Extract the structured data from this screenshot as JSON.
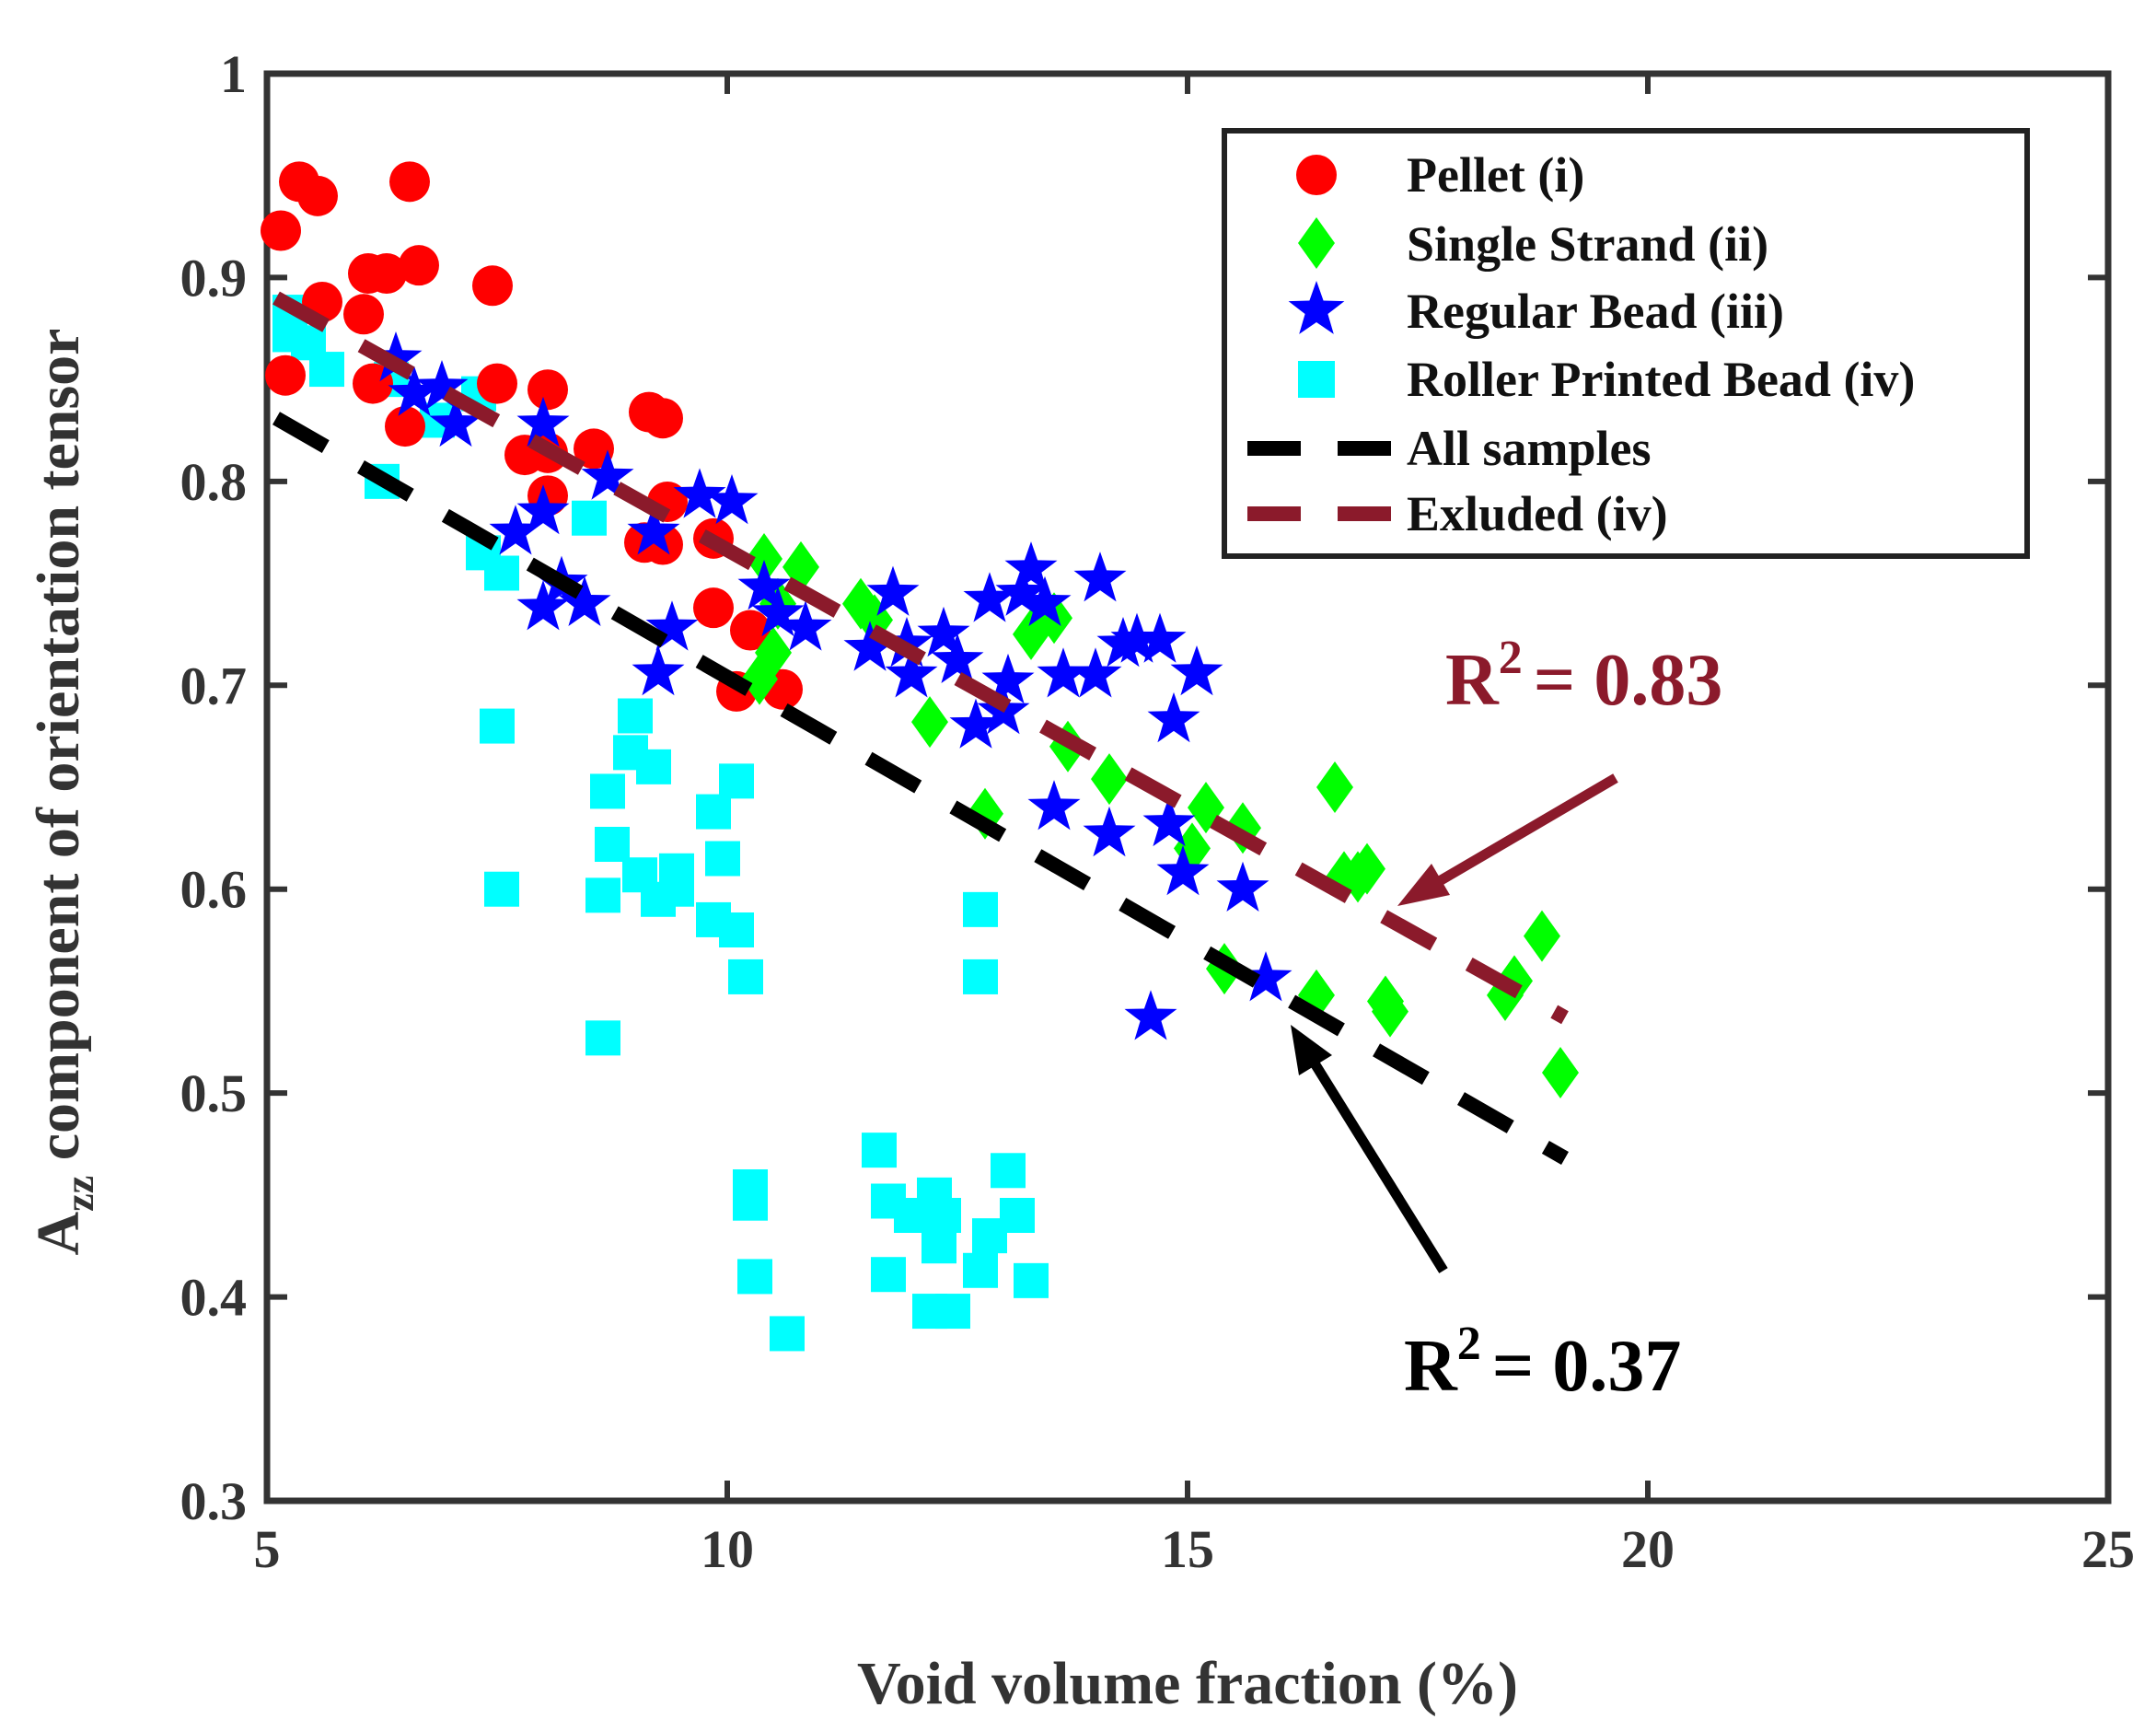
{
  "chart_data": {
    "type": "scatter",
    "xlabel": "Void volume fraction (%)",
    "ylabel_main": "A",
    "ylabel_sub": "zz",
    "ylabel_rest": " component of orientation tensor",
    "xlim": [
      5,
      25
    ],
    "ylim": [
      0.3,
      1
    ],
    "xticks": [
      5,
      10,
      15,
      20,
      25
    ],
    "yticks": [
      0.3,
      0.4,
      0.5,
      0.6,
      0.7,
      0.8,
      0.9,
      1
    ],
    "xtick_labels": [
      "5",
      "10",
      "15",
      "20",
      "25"
    ],
    "ytick_labels": [
      "0.3",
      "0.4",
      "0.5",
      "0.6",
      "0.7",
      "0.8",
      "0.9",
      "1"
    ],
    "grid": false,
    "legend_position": "top-right",
    "series": [
      {
        "name": "Pellet (i)",
        "marker": "circle",
        "color": "#ff0000",
        "points": [
          [
            5.15,
            0.923
          ],
          [
            5.35,
            0.947
          ],
          [
            5.55,
            0.94
          ],
          [
            5.2,
            0.852
          ],
          [
            5.6,
            0.888
          ],
          [
            6.05,
            0.882
          ],
          [
            6.1,
            0.902
          ],
          [
            6.3,
            0.902
          ],
          [
            6.15,
            0.848
          ],
          [
            6.5,
            0.827
          ],
          [
            6.55,
            0.947
          ],
          [
            6.65,
            0.906
          ],
          [
            7.45,
            0.896
          ],
          [
            7.5,
            0.848
          ],
          [
            7.8,
            0.813
          ],
          [
            8.05,
            0.845
          ],
          [
            8.05,
            0.814
          ],
          [
            8.05,
            0.793
          ],
          [
            8.55,
            0.816
          ],
          [
            9.15,
            0.834
          ],
          [
            9.3,
            0.831
          ],
          [
            9.1,
            0.77
          ],
          [
            9.3,
            0.769
          ],
          [
            9.35,
            0.79
          ],
          [
            9.85,
            0.772
          ],
          [
            9.85,
            0.738
          ],
          [
            10.1,
            0.697
          ],
          [
            10.25,
            0.727
          ],
          [
            10.6,
            0.698
          ]
        ]
      },
      {
        "name": "Single Strand (ii)",
        "marker": "diamond",
        "color": "#00ff00",
        "points": [
          [
            10.4,
            0.762
          ],
          [
            10.8,
            0.758
          ],
          [
            10.5,
            0.716
          ],
          [
            10.35,
            0.703
          ],
          [
            10.55,
            0.74
          ],
          [
            11.45,
            0.74
          ],
          [
            11.6,
            0.732
          ],
          [
            12.2,
            0.682
          ],
          [
            12.8,
            0.637
          ],
          [
            13.3,
            0.725
          ],
          [
            13.55,
            0.733
          ],
          [
            13.7,
            0.67
          ],
          [
            14.15,
            0.654
          ],
          [
            15.2,
            0.64
          ],
          [
            15.6,
            0.63
          ],
          [
            15.05,
            0.62
          ],
          [
            15.4,
            0.561
          ],
          [
            16.4,
            0.548
          ],
          [
            16.6,
            0.65
          ],
          [
            16.7,
            0.606
          ],
          [
            16.85,
            0.606
          ],
          [
            16.95,
            0.61
          ],
          [
            17.15,
            0.545
          ],
          [
            17.2,
            0.54
          ],
          [
            18.45,
            0.548
          ],
          [
            18.55,
            0.555
          ],
          [
            18.85,
            0.577
          ],
          [
            19.05,
            0.51
          ]
        ]
      },
      {
        "name": "Regular Bead (iii)",
        "marker": "star",
        "color": "#0000ff",
        "points": [
          [
            6.4,
            0.86
          ],
          [
            6.6,
            0.843
          ],
          [
            6.9,
            0.846
          ],
          [
            7.05,
            0.828
          ],
          [
            7.7,
            0.775
          ],
          [
            8.0,
            0.828
          ],
          [
            8.0,
            0.785
          ],
          [
            8.0,
            0.738
          ],
          [
            8.2,
            0.75
          ],
          [
            8.45,
            0.74
          ],
          [
            8.7,
            0.802
          ],
          [
            9.2,
            0.775
          ],
          [
            9.25,
            0.706
          ],
          [
            9.4,
            0.728
          ],
          [
            9.7,
            0.793
          ],
          [
            10.05,
            0.79
          ],
          [
            10.4,
            0.748
          ],
          [
            10.55,
            0.735
          ],
          [
            10.85,
            0.728
          ],
          [
            11.55,
            0.718
          ],
          [
            11.8,
            0.745
          ],
          [
            11.95,
            0.72
          ],
          [
            12.0,
            0.705
          ],
          [
            12.35,
            0.725
          ],
          [
            12.5,
            0.712
          ],
          [
            12.7,
            0.68
          ],
          [
            12.85,
            0.742
          ],
          [
            13.0,
            0.687
          ],
          [
            13.05,
            0.702
          ],
          [
            13.2,
            0.745
          ],
          [
            13.3,
            0.757
          ],
          [
            13.45,
            0.74
          ],
          [
            13.55,
            0.64
          ],
          [
            13.65,
            0.705
          ],
          [
            14.0,
            0.705
          ],
          [
            14.05,
            0.752
          ],
          [
            14.15,
            0.627
          ],
          [
            14.3,
            0.72
          ],
          [
            14.45,
            0.722
          ],
          [
            14.6,
            0.537
          ],
          [
            14.7,
            0.722
          ],
          [
            14.8,
            0.632
          ],
          [
            14.85,
            0.683
          ],
          [
            14.95,
            0.608
          ],
          [
            15.1,
            0.706
          ],
          [
            15.6,
            0.6
          ],
          [
            15.85,
            0.556
          ]
        ]
      },
      {
        "name": "Roller Printed Bead (iv)",
        "marker": "square",
        "color": "#00ffff",
        "points": [
          [
            5.25,
            0.883
          ],
          [
            5.25,
            0.872
          ],
          [
            5.45,
            0.868
          ],
          [
            5.65,
            0.855
          ],
          [
            6.25,
            0.8
          ],
          [
            6.35,
            0.85
          ],
          [
            6.85,
            0.83
          ],
          [
            7.3,
            0.843
          ],
          [
            7.35,
            0.765
          ],
          [
            7.55,
            0.755
          ],
          [
            7.5,
            0.68
          ],
          [
            7.55,
            0.6
          ],
          [
            8.5,
            0.782
          ],
          [
            8.65,
            0.597
          ],
          [
            8.7,
            0.648
          ],
          [
            8.75,
            0.622
          ],
          [
            8.65,
            0.527
          ],
          [
            8.95,
            0.667
          ],
          [
            9.0,
            0.685
          ],
          [
            9.05,
            0.607
          ],
          [
            9.2,
            0.66
          ],
          [
            9.25,
            0.595
          ],
          [
            9.45,
            0.6
          ],
          [
            9.45,
            0.609
          ],
          [
            9.85,
            0.638
          ],
          [
            9.85,
            0.585
          ],
          [
            9.95,
            0.615
          ],
          [
            10.1,
            0.653
          ],
          [
            10.1,
            0.58
          ],
          [
            10.2,
            0.557
          ],
          [
            10.25,
            0.454
          ],
          [
            10.25,
            0.446
          ],
          [
            10.3,
            0.41
          ],
          [
            10.65,
            0.382
          ],
          [
            11.65,
            0.472
          ],
          [
            11.75,
            0.447
          ],
          [
            11.75,
            0.411
          ],
          [
            12.0,
            0.44
          ],
          [
            12.2,
            0.393
          ],
          [
            12.25,
            0.45
          ],
          [
            12.3,
            0.425
          ],
          [
            12.35,
            0.44
          ],
          [
            12.45,
            0.393
          ],
          [
            12.75,
            0.59
          ],
          [
            12.75,
            0.557
          ],
          [
            12.75,
            0.413
          ],
          [
            12.85,
            0.43
          ],
          [
            13.05,
            0.462
          ],
          [
            13.15,
            0.44
          ],
          [
            13.3,
            0.408
          ]
        ]
      }
    ],
    "fit_lines": [
      {
        "name": "All samples",
        "color": "#000000",
        "x": [
          5.1,
          19.1
        ],
        "y": [
          0.831,
          0.468
        ],
        "style": "dashed",
        "r2_label": "= 0.37"
      },
      {
        "name": "Exluded (iv)",
        "color": "#8b1a2b",
        "x": [
          5.1,
          19.1
        ],
        "y": [
          0.89,
          0.537
        ],
        "style": "dashed",
        "r2_label": "= 0.83"
      }
    ],
    "annotations": [
      {
        "id": "r2_excluded",
        "prefix": "R",
        "sup": "2",
        "text": "= 0.83",
        "color": "#8b1a2b"
      },
      {
        "id": "r2_all",
        "prefix": "R",
        "sup": "2",
        "text": "= 0.37",
        "color": "#000000"
      }
    ]
  }
}
